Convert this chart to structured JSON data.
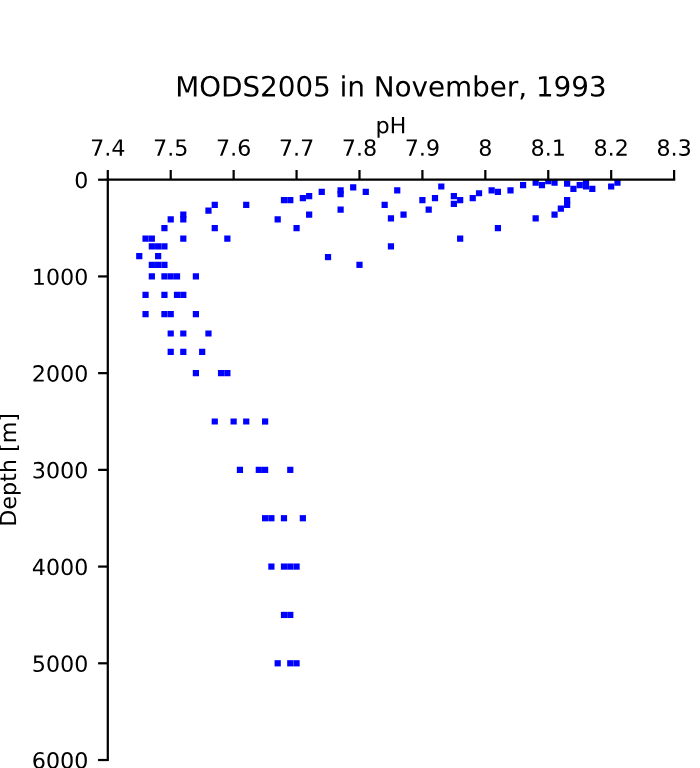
{
  "chart_data": {
    "type": "scatter",
    "title": "MODS2005 in November, 1993",
    "xlabel": "pH",
    "ylabel": "Depth [m]",
    "xlim": [
      7.4,
      8.3
    ],
    "xticks": [
      7.4,
      7.5,
      7.6,
      7.7,
      7.8,
      7.9,
      8,
      8.1,
      8.2,
      8.3
    ],
    "ylim": [
      6000,
      0
    ],
    "yticks": [
      0,
      1000,
      2000,
      3000,
      4000,
      5000,
      6000
    ],
    "grid": false,
    "marker": "square",
    "series": [
      {
        "color": "#0000ff",
        "x": [
          7.45,
          7.46,
          7.47,
          7.48,
          7.49,
          7.47,
          7.48,
          7.49,
          7.47,
          7.48,
          7.49,
          7.47,
          7.49,
          7.5,
          7.51,
          7.54,
          7.46,
          7.49,
          7.51,
          7.52,
          7.46,
          7.49,
          7.5,
          7.54,
          7.5,
          7.52,
          7.56,
          7.5,
          7.52,
          7.55,
          7.5,
          7.52,
          7.52,
          7.52,
          7.56,
          7.57,
          7.57,
          7.59,
          7.62,
          7.67,
          7.68,
          7.69,
          7.7,
          7.71,
          7.72,
          7.72,
          7.74,
          7.75,
          7.77,
          7.77,
          7.77,
          7.79,
          7.8,
          7.81,
          7.84,
          7.85,
          7.85,
          7.86,
          7.87,
          7.9,
          7.91,
          7.92,
          7.93,
          7.95,
          7.95,
          7.96,
          7.96,
          7.98,
          7.99,
          8.01,
          8.02,
          8.02,
          8.04,
          8.06,
          8.08,
          8.09,
          8.1,
          8.11,
          8.13,
          8.13,
          8.13,
          8.12,
          8.11,
          8.08,
          8.14,
          8.15,
          8.16,
          8.16,
          8.17,
          8.2,
          8.21,
          7.54,
          7.58,
          7.59,
          7.57,
          7.6,
          7.62,
          7.65,
          7.61,
          7.64,
          7.65,
          7.69,
          7.65,
          7.66,
          7.68,
          7.71,
          7.66,
          7.68,
          7.69,
          7.7,
          7.68,
          7.69,
          7.67,
          7.69,
          7.7
        ],
        "values": [
          790,
          610,
          690,
          690,
          690,
          610,
          790,
          500,
          880,
          880,
          880,
          1000,
          1000,
          1000,
          1000,
          1000,
          1190,
          1190,
          1190,
          1190,
          1390,
          1390,
          1390,
          1390,
          1590,
          1590,
          1590,
          1780,
          1780,
          1780,
          410,
          360,
          410,
          610,
          320,
          260,
          500,
          610,
          260,
          410,
          210,
          210,
          500,
          190,
          360,
          170,
          125,
          800,
          110,
          150,
          310,
          80,
          880,
          125,
          260,
          690,
          400,
          110,
          360,
          210,
          310,
          190,
          70,
          170,
          250,
          210,
          610,
          190,
          140,
          110,
          500,
          125,
          110,
          55,
          30,
          55,
          15,
          30,
          40,
          210,
          260,
          300,
          360,
          400,
          95,
          55,
          15,
          70,
          95,
          70,
          30,
          2000,
          2000,
          2000,
          2500,
          2500,
          2500,
          2500,
          3000,
          3000,
          3000,
          3000,
          3500,
          3500,
          3500,
          3500,
          4000,
          4000,
          4000,
          4000,
          4500,
          4500,
          5000,
          5000,
          5000
        ]
      }
    ]
  }
}
